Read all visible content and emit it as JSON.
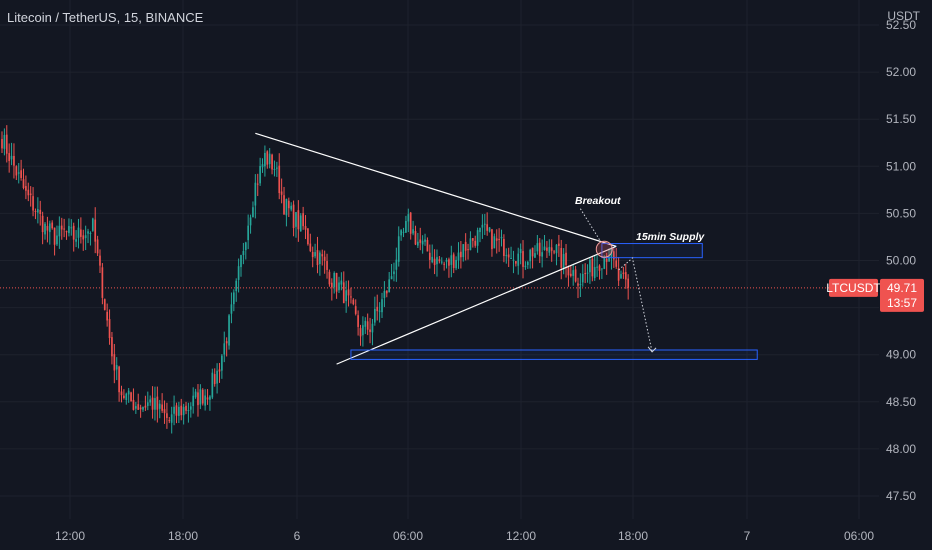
{
  "header": {
    "title": "Litecoin / TetherUS, 15, BINANCE",
    "unit": "USDT"
  },
  "annotations": {
    "breakout": "Breakout",
    "supply": "15min Supply"
  },
  "badges": {
    "symbol": "LTCUSDT",
    "price": "49.71",
    "countdown": "13:57"
  },
  "colors": {
    "background": "#131722",
    "up": "#26a69a",
    "down": "#ef5350",
    "drawing": "#ffffff",
    "zone": "#2962ff",
    "price_line": "#ef5350"
  },
  "chart_data": {
    "type": "candlestick",
    "symbol": "LTCUSDT",
    "interval": "15",
    "exchange": "BINANCE",
    "ylim": [
      47.3,
      52.6
    ],
    "y_ticks": [
      "52.50",
      "52.00",
      "51.50",
      "51.00",
      "50.50",
      "50.00",
      "49.50",
      "49.00",
      "48.50",
      "48.00",
      "47.50"
    ],
    "x_ticks": [
      "12:00",
      "18:00",
      "6",
      "06:00",
      "12:00",
      "18:00",
      "7",
      "06:00"
    ],
    "last_price": 49.71,
    "close_path": [
      [
        0,
        51.3
      ],
      [
        5,
        51.0
      ],
      [
        10,
        50.7
      ],
      [
        14,
        50.55
      ],
      [
        18,
        50.35
      ],
      [
        22,
        50.25
      ],
      [
        26,
        50.3
      ],
      [
        30,
        50.25
      ],
      [
        34,
        50.3
      ],
      [
        38,
        50.35
      ],
      [
        42,
        49.7
      ],
      [
        46,
        49.0
      ],
      [
        50,
        48.6
      ],
      [
        54,
        48.5
      ],
      [
        58,
        48.45
      ],
      [
        62,
        48.5
      ],
      [
        66,
        48.4
      ],
      [
        70,
        48.3
      ],
      [
        74,
        48.4
      ],
      [
        78,
        48.45
      ],
      [
        82,
        48.55
      ],
      [
        86,
        48.6
      ],
      [
        90,
        48.8
      ],
      [
        94,
        49.2
      ],
      [
        98,
        49.7
      ],
      [
        102,
        50.3
      ],
      [
        106,
        50.8
      ],
      [
        110,
        51.1
      ],
      [
        114,
        51.0
      ],
      [
        118,
        50.6
      ],
      [
        122,
        50.45
      ],
      [
        126,
        50.35
      ],
      [
        130,
        50.1
      ],
      [
        134,
        50.0
      ],
      [
        138,
        49.8
      ],
      [
        142,
        49.7
      ],
      [
        146,
        49.5
      ],
      [
        150,
        49.25
      ],
      [
        154,
        49.3
      ],
      [
        158,
        49.5
      ],
      [
        162,
        49.75
      ],
      [
        166,
        50.15
      ],
      [
        170,
        50.4
      ],
      [
        174,
        50.2
      ],
      [
        178,
        50.1
      ],
      [
        182,
        50.0
      ],
      [
        186,
        49.95
      ],
      [
        190,
        50.05
      ],
      [
        194,
        50.15
      ],
      [
        198,
        50.25
      ],
      [
        202,
        50.3
      ],
      [
        206,
        50.2
      ],
      [
        210,
        50.15
      ],
      [
        214,
        50.1
      ],
      [
        218,
        50.0
      ],
      [
        222,
        50.1
      ],
      [
        226,
        50.05
      ],
      [
        230,
        50.2
      ],
      [
        234,
        50.0
      ],
      [
        238,
        49.9
      ],
      [
        242,
        49.8
      ],
      [
        246,
        49.9
      ],
      [
        250,
        50.0
      ],
      [
        254,
        50.1
      ],
      [
        258,
        49.8
      ],
      [
        262,
        49.71
      ]
    ],
    "drawings": [
      {
        "type": "trendline",
        "from": [
          106,
          51.35
        ],
        "to": [
          257,
          50.15
        ]
      },
      {
        "type": "trendline",
        "from": [
          140,
          48.9
        ],
        "to": [
          257,
          50.15
        ]
      },
      {
        "type": "zone",
        "label": "15min Supply",
        "x": [
          251,
          293
        ],
        "y": [
          50.03,
          50.18
        ]
      },
      {
        "type": "zone",
        "label": "",
        "x": [
          146,
          316
        ],
        "y": [
          48.95,
          49.05
        ]
      },
      {
        "type": "arrow",
        "from": [
          264,
          50.0
        ],
        "to": [
          272,
          49.03
        ],
        "dotted": true
      }
    ]
  }
}
